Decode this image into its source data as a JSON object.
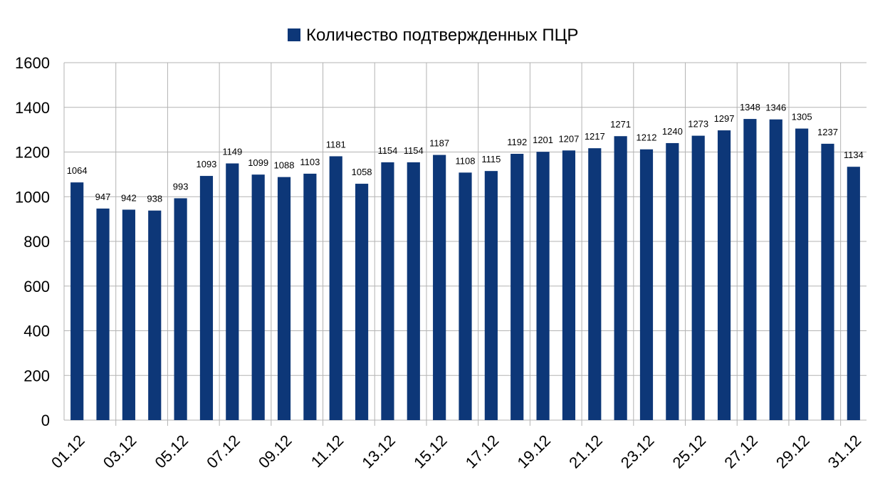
{
  "chart_data": {
    "type": "bar",
    "title": "",
    "xlabel": "",
    "ylabel": "",
    "ylim": [
      0,
      1600
    ],
    "yticks": [
      0,
      200,
      400,
      600,
      800,
      1000,
      1200,
      1400,
      1600
    ],
    "grid": true,
    "legend_position": "top-center",
    "categories": [
      "01.12",
      "02.12",
      "03.12",
      "04.12",
      "05.12",
      "06.12",
      "07.12",
      "08.12",
      "09.12",
      "10.12",
      "11.12",
      "12.12",
      "13.12",
      "14.12",
      "15.12",
      "16.12",
      "17.12",
      "18.12",
      "19.12",
      "20.12",
      "21.12",
      "22.12",
      "23.12",
      "24.12",
      "25.12",
      "26.12",
      "27.12",
      "28.12",
      "29.12",
      "30.12",
      "31.12"
    ],
    "shown_tick_labels": [
      "01.12",
      "03.12",
      "05.12",
      "07.12",
      "09.12",
      "11.12",
      "13.12",
      "15.12",
      "17.12",
      "19.12",
      "21.12",
      "23.12",
      "25.12",
      "27.12",
      "29.12",
      "31.12"
    ],
    "series": [
      {
        "name": "Количество подтвержденных ПЦР",
        "color": "#0d3778",
        "values": [
          1064,
          947,
          942,
          938,
          993,
          1093,
          1149,
          1099,
          1088,
          1103,
          1181,
          1058,
          1154,
          1154,
          1187,
          1108,
          1115,
          1192,
          1201,
          1207,
          1217,
          1271,
          1212,
          1240,
          1273,
          1297,
          1348,
          1346,
          1305,
          1237,
          1134
        ]
      }
    ]
  },
  "legend": {
    "label": "Количество подтвержденных ПЦР",
    "swatch_color": "#0d3778"
  }
}
